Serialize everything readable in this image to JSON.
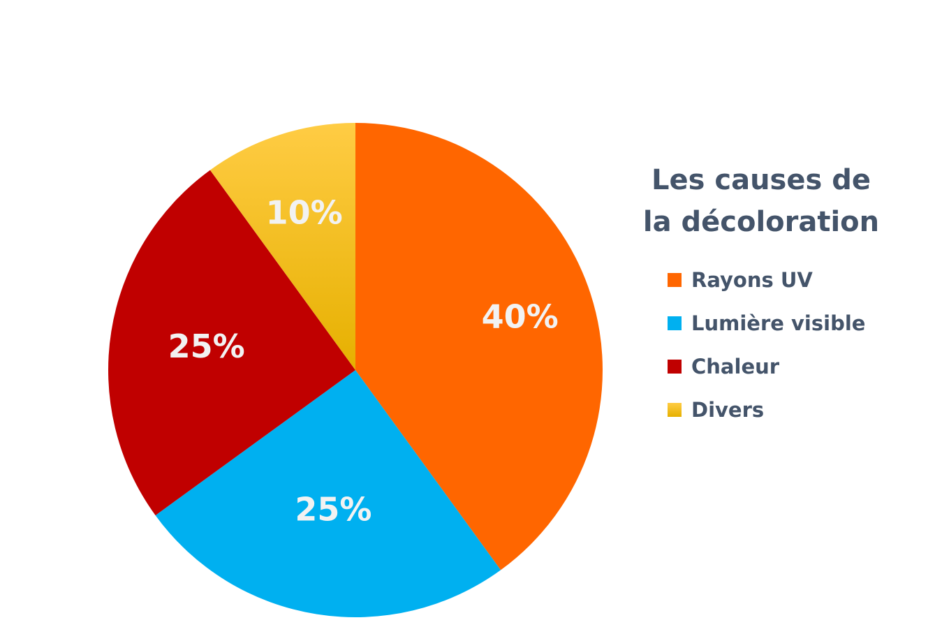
{
  "chart_data": {
    "type": "pie",
    "title": "Les causes de la décoloration",
    "title_lines": [
      "Les causes de",
      "la décoloration"
    ],
    "legend_position": "right",
    "slices": [
      {
        "name": "Rayons UV",
        "value": 40,
        "label": "40%",
        "color": "#ff6600"
      },
      {
        "name": "Lumière visible",
        "value": 25,
        "label": "25%",
        "color": "#00b0f0"
      },
      {
        "name": "Chaleur",
        "value": 25,
        "label": "25%",
        "color": "#c00000"
      },
      {
        "name": "Divers",
        "value": 10,
        "label": "10%",
        "color": "#ffc000"
      }
    ]
  }
}
